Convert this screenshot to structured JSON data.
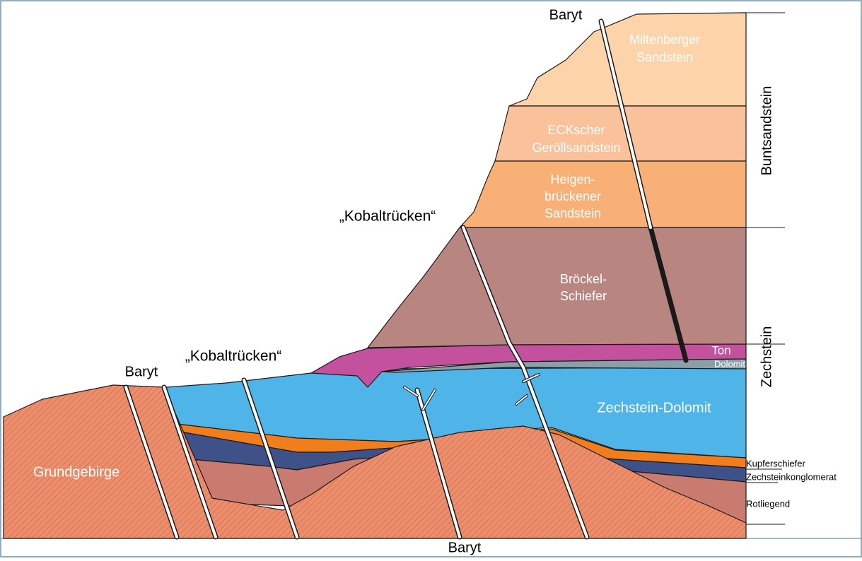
{
  "labels": {
    "baryt_top": "Baryt",
    "miltenberger": [
      "Miltenberger",
      "Sandstein"
    ],
    "eck": [
      "ECKscher",
      "Geröllsandstein"
    ],
    "heigen": [
      "Heigen-",
      "brückener",
      "Sandstein"
    ],
    "kobalt_upper": "„Kobaltrücken“",
    "broeckel": [
      "Bröckel-",
      "Schiefer"
    ],
    "ton": "Ton",
    "dolomit": "Dolomit",
    "kobalt_lower": "„Kobaltrücken“",
    "baryt_left": "Baryt",
    "zechstein_dolomit": "Zechstein-Dolomit",
    "grundgebirge": "Grundgebirge",
    "kupferschiefer": "Kupferschiefer",
    "zechsteinkonglomerat": "Zechsteinkonglomerat",
    "rotliegend": "Rotliegend",
    "buntsandstein": "Buntsandstein",
    "zechstein": "Zechstein",
    "baryt_bottom": "Baryt"
  }
}
